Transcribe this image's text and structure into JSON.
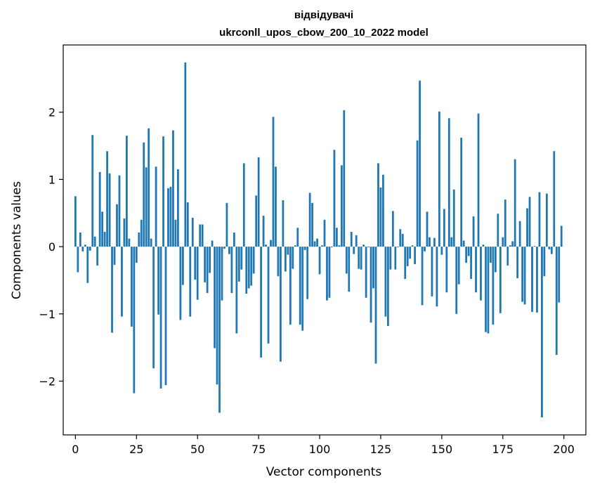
{
  "chart_data": {
    "type": "bar",
    "title": "відвідувачі",
    "subtitle": "ukrconll_upos_cbow_200_10_2022 model",
    "xlabel": "Vector components",
    "ylabel": "Components values",
    "xlim": [
      -5,
      209
    ],
    "ylim": [
      -2.8,
      3.0
    ],
    "xticks": [
      0,
      25,
      50,
      75,
      100,
      125,
      150,
      175,
      200
    ],
    "yticks": [
      -2,
      -1,
      0,
      1,
      2
    ],
    "ytick_labels": [
      "−2",
      "−1",
      "0",
      "1",
      "2"
    ],
    "bar_color": "#1f77b4",
    "grid": false,
    "x": [
      0,
      1,
      2,
      3,
      4,
      5,
      6,
      7,
      8,
      9,
      10,
      11,
      12,
      13,
      14,
      15,
      16,
      17,
      18,
      19,
      20,
      21,
      22,
      23,
      24,
      25,
      26,
      27,
      28,
      29,
      30,
      31,
      32,
      33,
      34,
      35,
      36,
      37,
      38,
      39,
      40,
      41,
      42,
      43,
      44,
      45,
      46,
      47,
      48,
      49,
      50,
      51,
      52,
      53,
      54,
      55,
      56,
      57,
      58,
      59,
      60,
      61,
      62,
      63,
      64,
      65,
      66,
      67,
      68,
      69,
      70,
      71,
      72,
      73,
      74,
      75,
      76,
      77,
      78,
      79,
      80,
      81,
      82,
      83,
      84,
      85,
      86,
      87,
      88,
      89,
      90,
      91,
      92,
      93,
      94,
      95,
      96,
      97,
      98,
      99,
      100,
      101,
      102,
      103,
      104,
      105,
      106,
      107,
      108,
      109,
      110,
      111,
      112,
      113,
      114,
      115,
      116,
      117,
      118,
      119,
      120,
      121,
      122,
      123,
      124,
      125,
      126,
      127,
      128,
      129,
      130,
      131,
      132,
      133,
      134,
      135,
      136,
      137,
      138,
      139,
      140,
      141,
      142,
      143,
      144,
      145,
      146,
      147,
      148,
      149,
      150,
      151,
      152,
      153,
      154,
      155,
      156,
      157,
      158,
      159,
      160,
      161,
      162,
      163,
      164,
      165,
      166,
      167,
      168,
      169,
      170,
      171,
      172,
      173,
      174,
      175,
      176,
      177,
      178,
      179,
      180,
      181,
      182,
      183,
      184,
      185,
      186,
      187,
      188,
      189,
      190,
      191,
      192,
      193,
      194,
      195,
      196,
      197,
      198,
      199
    ],
    "values": [
      0.75,
      -0.38,
      0.21,
      -0.07,
      0.03,
      -0.54,
      -0.06,
      1.66,
      0.15,
      -0.28,
      1.11,
      0.52,
      0.22,
      1.42,
      1.09,
      -1.28,
      -0.27,
      0.63,
      1.06,
      -1.04,
      0.42,
      1.65,
      0.12,
      -1.19,
      -2.18,
      -0.24,
      0.21,
      0.4,
      1.55,
      1.18,
      1.76,
      0.12,
      -1.81,
      1.19,
      -1.01,
      -2.11,
      1.64,
      -2.06,
      0.87,
      0.89,
      1.73,
      0.4,
      1.15,
      -1.09,
      -0.57,
      2.74,
      0.66,
      -1.04,
      0.43,
      -0.49,
      -0.79,
      0.33,
      0.33,
      -0.53,
      -0.69,
      -0.39,
      0.09,
      -1.51,
      -2.05,
      -2.47,
      -0.8,
      -0.03,
      0.65,
      -0.11,
      -0.69,
      0.21,
      -1.29,
      -0.52,
      -0.34,
      1.24,
      -0.7,
      -0.62,
      -0.58,
      -0.4,
      0.76,
      1.33,
      -1.65,
      0.46,
      0.03,
      -1.44,
      0.1,
      1.93,
      1.19,
      -0.44,
      -1.71,
      0.69,
      -0.37,
      -0.12,
      -1.16,
      -0.33,
      0.02,
      0.28,
      -1.16,
      -1.25,
      -0.05,
      -0.78,
      0.8,
      0.65,
      0.08,
      0.12,
      -0.41,
      0.02,
      0.4,
      -0.8,
      -0.76,
      -0.01,
      1.44,
      0.28,
      0.02,
      1.21,
      2.03,
      -0.4,
      -0.67,
      0.22,
      -0.11,
      0.17,
      -0.33,
      -0.34,
      0.03,
      -0.76,
      -0.01,
      -1.13,
      -0.62,
      -1.74,
      1.24,
      0.88,
      1.07,
      -1.04,
      -1.18,
      -0.34,
      0.53,
      -0.34,
      -0.01,
      0.26,
      0.19,
      -0.48,
      -0.29,
      -0.18,
      0.02,
      -0.26,
      1.58,
      2.47,
      -0.87,
      -0.07,
      0.52,
      0.14,
      -0.74,
      0.13,
      -0.89,
      2.01,
      -0.12,
      0.56,
      -0.68,
      1.91,
      0.14,
      0.85,
      -1.0,
      -0.56,
      1.62,
      0.09,
      -0.24,
      -0.14,
      -0.48,
      0.45,
      -0.68,
      1.98,
      -0.8,
      0.03,
      -1.27,
      -1.29,
      -0.24,
      -1.16,
      -0.38,
      0.49,
      -0.99,
      0.14,
      0.7,
      -0.28,
      0.02,
      0.08,
      1.3,
      -0.47,
      0.38,
      -0.82,
      -0.86,
      0.57,
      0.74,
      -0.97,
      0.01,
      -0.98,
      0.81,
      -2.54,
      -0.44,
      0.79,
      -0.04,
      -0.11,
      1.42,
      -1.61,
      -0.83,
      0.31
    ]
  }
}
